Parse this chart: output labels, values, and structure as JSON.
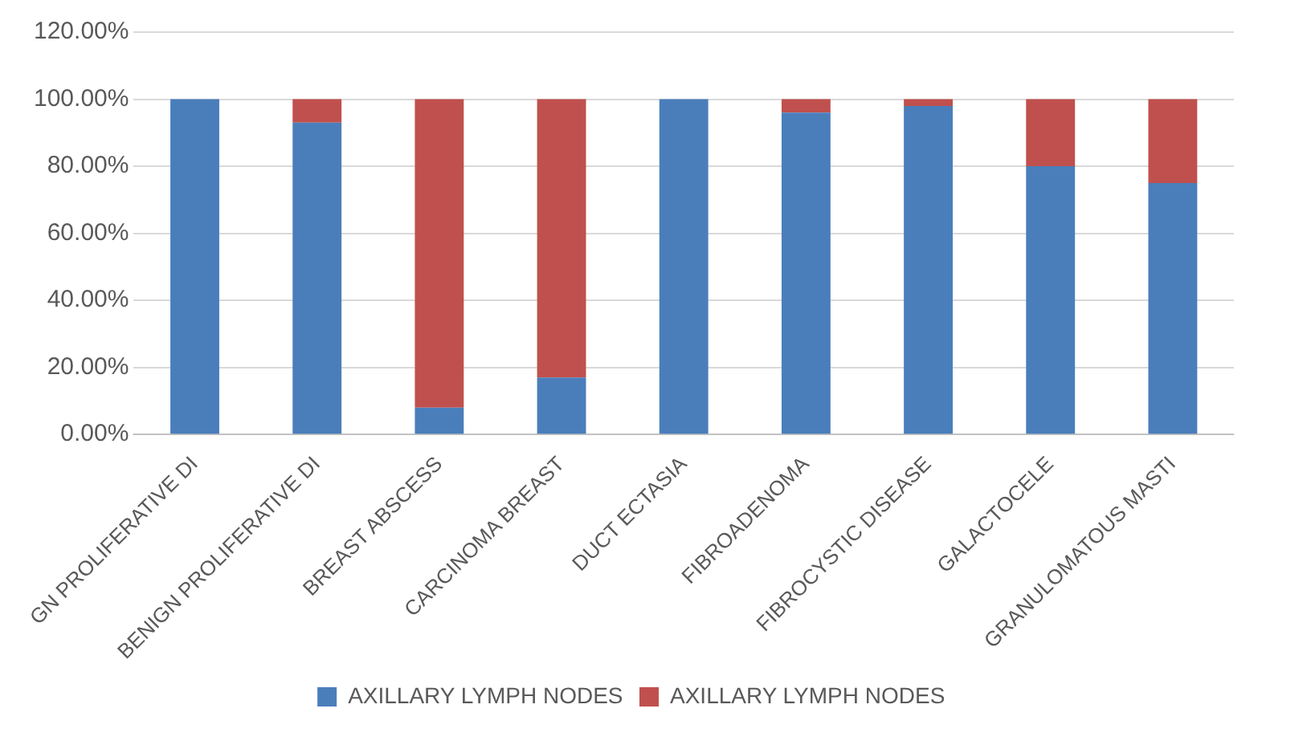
{
  "chart_data": {
    "type": "bar",
    "stacked": true,
    "categories": [
      "GN PROLIFERATIVE DI",
      "BENIGN PROLIFERATIVE DI",
      "BREAST ABSCESS",
      "CARCINOMA BREAST",
      "DUCT ECTASIA",
      "FIBROADENOMA",
      "FIBROCYSTIC DISEASE",
      "GALACTOCELE",
      "GRANULOMATOUS MASTI"
    ],
    "series": [
      {
        "name": "AXILLARY LYMPH NODES",
        "color": "#4a7ebb",
        "values": [
          100,
          93,
          8,
          17,
          100,
          96,
          98,
          80,
          75
        ]
      },
      {
        "name": "AXILLARY LYMPH NODES",
        "color": "#c0504d",
        "values": [
          0,
          7,
          92,
          83,
          0,
          4,
          2,
          20,
          25
        ]
      }
    ],
    "ylim": [
      0,
      120
    ],
    "yticks": [
      {
        "value": 0,
        "label": "0.00%"
      },
      {
        "value": 20,
        "label": "20.00%"
      },
      {
        "value": 40,
        "label": "40.00%"
      },
      {
        "value": 60,
        "label": "60.00%"
      },
      {
        "value": 80,
        "label": "80.00%"
      },
      {
        "value": 100,
        "label": "100.00%"
      },
      {
        "value": 120,
        "label": "120.00%"
      }
    ],
    "grid": "y",
    "legend": "bottom"
  }
}
